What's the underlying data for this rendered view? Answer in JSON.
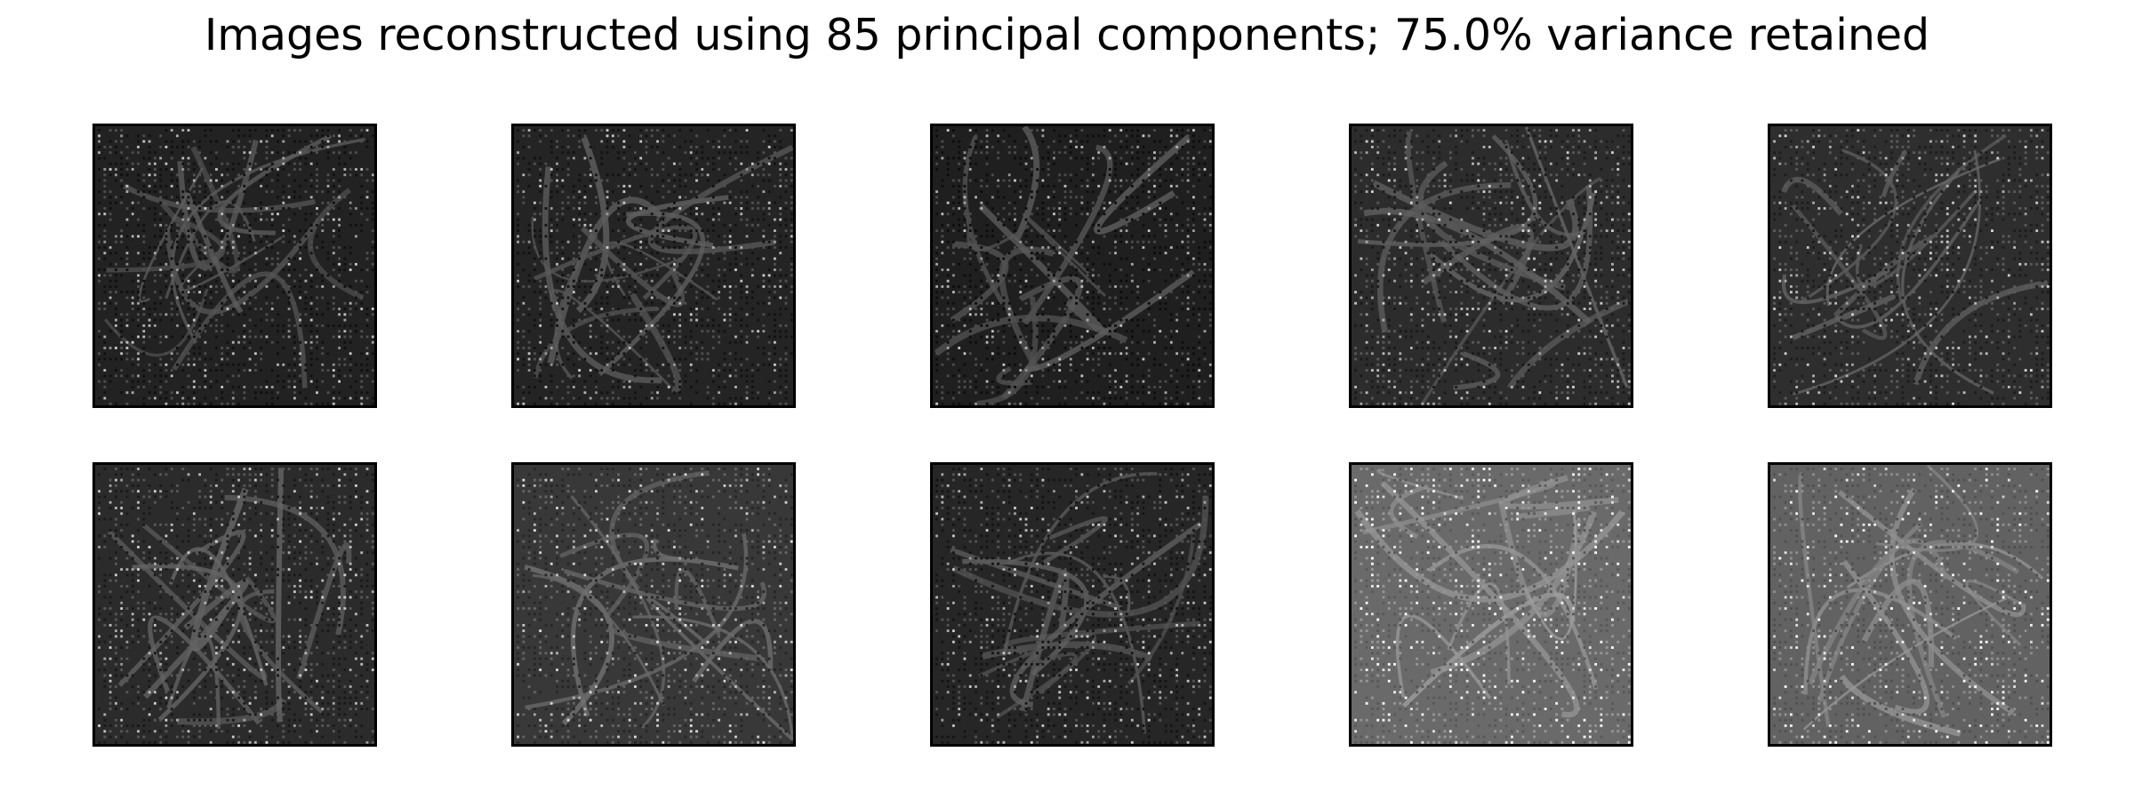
{
  "figure": {
    "title": "Images reconstructed using 85 principal components; 75.0% variance retained"
  },
  "images": [
    {
      "id": "row1-col1",
      "base_gray": "#222222",
      "edge_gray": "#4a4a4a",
      "seed": 11
    },
    {
      "id": "row1-col2",
      "base_gray": "#242424",
      "edge_gray": "#505050",
      "seed": 23
    },
    {
      "id": "row1-col3",
      "base_gray": "#1f1f1f",
      "edge_gray": "#4c4c4c",
      "seed": 37
    },
    {
      "id": "row1-col4",
      "base_gray": "#2c2c2c",
      "edge_gray": "#565656",
      "seed": 41
    },
    {
      "id": "row1-col5",
      "base_gray": "#2e2e2e",
      "edge_gray": "#585858",
      "seed": 53
    },
    {
      "id": "row2-col1",
      "base_gray": "#2b2b2b",
      "edge_gray": "#555555",
      "seed": 61
    },
    {
      "id": "row2-col2",
      "base_gray": "#383838",
      "edge_gray": "#606060",
      "seed": 73
    },
    {
      "id": "row2-col3",
      "base_gray": "#262626",
      "edge_gray": "#4e4e4e",
      "seed": 89
    },
    {
      "id": "row2-col4",
      "base_gray": "#6a6a6a",
      "edge_gray": "#8a8a8a",
      "seed": 97
    },
    {
      "id": "row2-col5",
      "base_gray": "#626262",
      "edge_gray": "#828282",
      "seed": 101
    }
  ]
}
